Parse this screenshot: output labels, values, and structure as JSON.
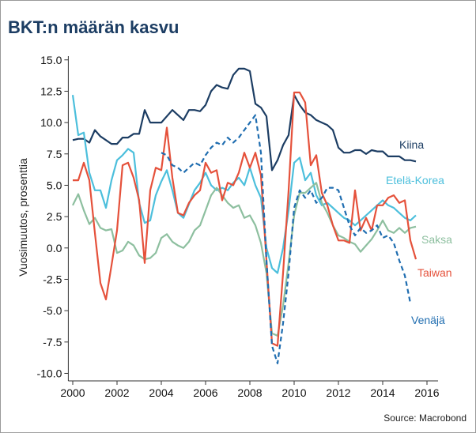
{
  "chart_data": {
    "type": "line",
    "title": "BKT:n määrän kasvu",
    "ylabel": "Vuosimuutos, prosenttia",
    "source": "Source: Macrobond",
    "x": [
      2000,
      2000.25,
      2000.5,
      2000.75,
      2001,
      2001.25,
      2001.5,
      2001.75,
      2002,
      2002.25,
      2002.5,
      2002.75,
      2003,
      2003.25,
      2003.5,
      2003.75,
      2004,
      2004.25,
      2004.5,
      2004.75,
      2005,
      2005.25,
      2005.5,
      2005.75,
      2006,
      2006.25,
      2006.5,
      2006.75,
      2007,
      2007.25,
      2007.5,
      2007.75,
      2008,
      2008.25,
      2008.5,
      2008.75,
      2009,
      2009.25,
      2009.5,
      2009.75,
      2010,
      2010.25,
      2010.5,
      2010.75,
      2011,
      2011.25,
      2011.5,
      2011.75,
      2012,
      2012.25,
      2012.5,
      2012.75,
      2013,
      2013.25,
      2013.5,
      2013.75,
      2014,
      2014.25,
      2014.5,
      2014.75,
      2015,
      2015.25,
      2015.5
    ],
    "xlim": [
      1999.8,
      2016.5
    ],
    "xticks": [
      2000,
      2002,
      2004,
      2006,
      2008,
      2010,
      2012,
      2014,
      2016
    ],
    "ylim": [
      -10.6,
      15.3
    ],
    "yticks": [
      {
        "value": 15,
        "label": "15.0"
      },
      {
        "value": 12.5,
        "label": "12.5"
      },
      {
        "value": 10,
        "label": "10.0"
      },
      {
        "value": 7.5,
        "label": "7.5"
      },
      {
        "value": 5,
        "label": "5.0"
      },
      {
        "value": 2.5,
        "label": "2.5"
      },
      {
        "value": 0,
        "label": "0.0"
      },
      {
        "value": -2.5,
        "label": "-2.5"
      },
      {
        "value": -5,
        "label": "-5.0"
      },
      {
        "value": -7.5,
        "label": "-7.5"
      },
      {
        "value": -10,
        "label": "-10.0"
      }
    ],
    "series": [
      {
        "name": "Kiina",
        "color": "#1c3d63",
        "dashed": false,
        "values": [
          8.6,
          8.7,
          8.7,
          8.4,
          9.4,
          8.9,
          8.6,
          8.3,
          8.3,
          8.8,
          8.8,
          9.1,
          9.1,
          11.0,
          10.0,
          10.0,
          10.0,
          10.5,
          11.0,
          10.6,
          10.2,
          11.0,
          11.0,
          10.9,
          11.4,
          12.5,
          13.0,
          12.8,
          12.7,
          13.8,
          14.3,
          14.3,
          14.1,
          11.5,
          11.2,
          10.5,
          6.2,
          7.0,
          8.2,
          9.0,
          12.2,
          11.4,
          10.8,
          10.6,
          10.2,
          10.0,
          9.8,
          9.4,
          8.0,
          7.6,
          7.6,
          7.8,
          7.8,
          7.5,
          7.8,
          7.7,
          7.7,
          7.3,
          7.3,
          7.3,
          7.0,
          7.0,
          6.9
        ]
      },
      {
        "name": "Etelä-Korea",
        "color": "#4cbfdc",
        "dashed": false,
        "values": [
          12.2,
          9.0,
          9.2,
          6.0,
          4.6,
          4.6,
          3.2,
          5.4,
          7.0,
          7.4,
          7.9,
          7.6,
          3.6,
          2.0,
          2.2,
          4.2,
          5.3,
          6.2,
          4.6,
          2.8,
          2.4,
          3.5,
          4.6,
          5.2,
          6.0,
          5.0,
          4.6,
          4.8,
          4.6,
          5.2,
          5.6,
          5.0,
          6.4,
          5.0,
          4.0,
          0.0,
          -1.6,
          -2.0,
          0.0,
          3.0,
          6.8,
          7.2,
          5.4,
          6.0,
          4.2,
          3.4,
          3.6,
          3.2,
          2.8,
          2.4,
          2.2,
          1.8,
          2.2,
          2.6,
          3.0,
          3.4,
          3.8,
          3.4,
          3.2,
          2.8,
          2.4,
          2.2,
          2.6
        ]
      },
      {
        "name": "Saksa",
        "color": "#8dbf9f",
        "dashed": false,
        "values": [
          3.4,
          4.3,
          3.0,
          1.9,
          2.4,
          1.6,
          1.4,
          1.5,
          -0.4,
          -0.2,
          0.5,
          0.2,
          -0.6,
          -0.9,
          -0.8,
          -0.4,
          0.8,
          1.1,
          0.5,
          0.2,
          0.0,
          0.5,
          1.4,
          1.8,
          3.0,
          4.2,
          4.8,
          4.2,
          3.6,
          3.2,
          3.4,
          2.4,
          2.6,
          1.8,
          0.4,
          -2.0,
          -6.8,
          -7.0,
          -4.6,
          -1.2,
          2.6,
          4.4,
          4.4,
          4.8,
          5.2,
          3.6,
          2.8,
          1.8,
          1.0,
          0.8,
          0.5,
          0.3,
          -0.3,
          0.2,
          0.7,
          1.4,
          2.2,
          1.4,
          1.2,
          1.6,
          1.2,
          1.6,
          1.7
        ]
      },
      {
        "name": "Taiwan",
        "color": "#e5513b",
        "dashed": false,
        "values": [
          5.4,
          5.4,
          6.8,
          5.4,
          1.2,
          -2.8,
          -4.1,
          -1.4,
          1.4,
          6.6,
          6.8,
          5.6,
          3.8,
          -1.2,
          4.6,
          6.4,
          6.2,
          9.6,
          5.6,
          2.8,
          2.6,
          3.6,
          4.2,
          4.6,
          6.8,
          6.0,
          6.2,
          3.8,
          5.2,
          5.0,
          6.0,
          7.6,
          6.4,
          7.6,
          5.8,
          -1.0,
          -7.6,
          -7.8,
          -2.0,
          4.6,
          12.4,
          12.4,
          11.6,
          6.6,
          7.4,
          4.4,
          3.4,
          1.8,
          0.6,
          0.6,
          0.4,
          4.6,
          1.4,
          2.4,
          1.4,
          3.4,
          3.4,
          4.0,
          4.2,
          3.6,
          3.8,
          0.6,
          -0.9
        ]
      },
      {
        "name": "Venäjä",
        "color": "#1f6db0",
        "dashed": true,
        "values": [
          null,
          null,
          null,
          null,
          null,
          null,
          null,
          null,
          null,
          null,
          null,
          null,
          null,
          null,
          null,
          null,
          7.6,
          7.4,
          6.6,
          6.4,
          6.0,
          6.4,
          6.8,
          6.6,
          7.4,
          8.0,
          8.4,
          8.2,
          8.8,
          8.4,
          8.8,
          9.4,
          10.0,
          10.6,
          7.6,
          -1.0,
          -7.8,
          -9.2,
          -6.0,
          -2.0,
          3.2,
          4.6,
          4.0,
          4.6,
          3.6,
          4.0,
          4.8,
          4.8,
          4.6,
          3.2,
          1.8,
          1.0,
          1.6,
          1.2,
          1.4,
          1.8,
          0.8,
          1.0,
          0.4,
          -1.0,
          -2.2,
          -4.4,
          null
        ]
      }
    ]
  }
}
